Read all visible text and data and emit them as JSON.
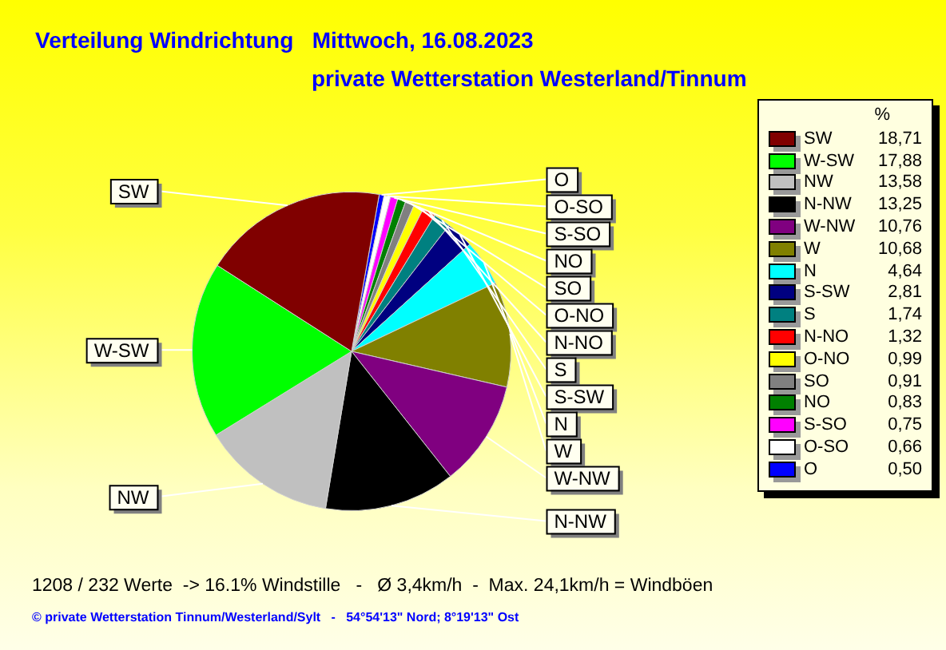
{
  "chart_data": {
    "type": "pie",
    "title": "Verteilung Windrichtung   Mittwoch, 16.08.2023",
    "subtitle": "private Wetterstation Westerland/Tinnum",
    "legend_title": "%",
    "legend": "right",
    "categories": [
      "SW",
      "W-SW",
      "NW",
      "N-NW",
      "W-NW",
      "W",
      "N",
      "S-SW",
      "S",
      "N-NO",
      "O-NO",
      "SO",
      "NO",
      "S-SO",
      "O-SO",
      "O"
    ],
    "values": [
      18.71,
      17.88,
      13.58,
      13.25,
      10.76,
      10.68,
      4.64,
      2.81,
      1.74,
      1.32,
      0.99,
      0.91,
      0.83,
      0.75,
      0.66,
      0.5
    ],
    "value_labels": [
      "18,71",
      "17,88",
      "13,58",
      "13,25",
      "10,76",
      "10,68",
      "4,64",
      "2,81",
      "1,74",
      "1,32",
      "0,99",
      "0,91",
      "0,83",
      "0,75",
      "0,66",
      "0,50"
    ],
    "colors": [
      "#800000",
      "#00ff00",
      "#c0c0c0",
      "#000000",
      "#800080",
      "#808000",
      "#00ffff",
      "#000080",
      "#008080",
      "#ff0000",
      "#ffff00",
      "#808080",
      "#008000",
      "#ff00ff",
      "#ffffff",
      "#0000ff"
    ],
    "annotations": [
      "1208 / 232 Werte  -> 16.1% Windstille   -   Ø 3,4km/h  -  Max. 24,1km/h = Windböen",
      "© private Wetterstation Tinnum/Westerland/Sylt   -   54°54'13\" Nord; 8°19'13\" Ost"
    ]
  }
}
